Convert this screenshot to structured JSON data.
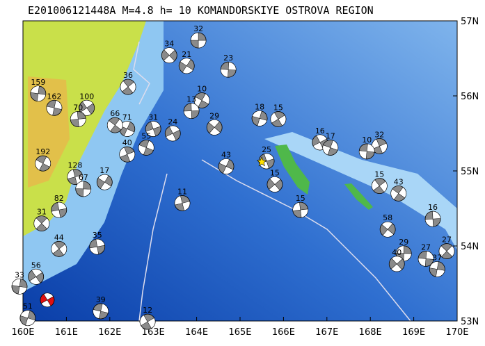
{
  "map": {
    "title": "E201006121448A M=4.8 h= 10 KOMANDORSKIYE OSTROVA REGION",
    "xlim": [
      160,
      170
    ],
    "ylim": [
      53,
      57
    ],
    "xticks": [
      {
        "value": 160,
        "label": "160E"
      },
      {
        "value": 161,
        "label": "161E"
      },
      {
        "value": 162,
        "label": "162E"
      },
      {
        "value": 163,
        "label": "163E"
      },
      {
        "value": 164,
        "label": "164E"
      },
      {
        "value": 165,
        "label": "165E"
      },
      {
        "value": 166,
        "label": "166E"
      },
      {
        "value": 167,
        "label": "167E"
      },
      {
        "value": 168,
        "label": "168E"
      },
      {
        "value": 169,
        "label": "169E"
      },
      {
        "value": 170,
        "label": "170E"
      }
    ],
    "yticks": [
      {
        "value": 53,
        "label": "53N"
      },
      {
        "value": 54,
        "label": "54N"
      },
      {
        "value": 55,
        "label": "55N"
      },
      {
        "value": 56,
        "label": "56N"
      },
      {
        "value": 57,
        "label": "57N"
      }
    ],
    "epicenter": {
      "lon": 165.5,
      "lat": 55.12
    },
    "main_event": {
      "lon": 160.56,
      "lat": 53.28
    },
    "events": [
      {
        "label": "32",
        "lon": 164.04,
        "lat": 56.74
      },
      {
        "label": "34",
        "lon": 163.37,
        "lat": 56.54
      },
      {
        "label": "23",
        "lon": 164.73,
        "lat": 56.35
      },
      {
        "label": "36",
        "lon": 162.42,
        "lat": 56.12
      },
      {
        "label": "159",
        "lon": 160.35,
        "lat": 56.03
      },
      {
        "label": "100",
        "lon": 161.47,
        "lat": 55.84
      },
      {
        "label": "162",
        "lon": 160.72,
        "lat": 55.84
      },
      {
        "label": "15",
        "lon": 165.88,
        "lat": 55.69
      },
      {
        "label": "18",
        "lon": 165.45,
        "lat": 55.7
      },
      {
        "label": "16",
        "lon": 166.84,
        "lat": 55.38
      },
      {
        "label": "17",
        "lon": 167.08,
        "lat": 55.31
      },
      {
        "label": "32",
        "lon": 168.21,
        "lat": 55.33
      },
      {
        "label": "71",
        "lon": 162.4,
        "lat": 55.56
      },
      {
        "label": "31",
        "lon": 163.0,
        "lat": 55.56
      },
      {
        "label": "192",
        "lon": 160.46,
        "lat": 55.1
      },
      {
        "label": "128",
        "lon": 161.2,
        "lat": 54.92
      },
      {
        "label": "17",
        "lon": 161.88,
        "lat": 54.85
      },
      {
        "label": "82",
        "lon": 160.83,
        "lat": 54.48
      },
      {
        "label": "43",
        "lon": 168.65,
        "lat": 54.7
      },
      {
        "label": "15",
        "lon": 166.39,
        "lat": 54.48
      },
      {
        "label": "58",
        "lon": 168.4,
        "lat": 54.22
      },
      {
        "label": "16",
        "lon": 169.44,
        "lat": 54.36
      },
      {
        "label": "27",
        "lon": 169.76,
        "lat": 53.93
      },
      {
        "label": "29",
        "lon": 168.77,
        "lat": 53.9
      },
      {
        "label": "40",
        "lon": 168.61,
        "lat": 53.76
      },
      {
        "label": "27",
        "lon": 169.28,
        "lat": 53.83
      },
      {
        "label": "44",
        "lon": 160.83,
        "lat": 53.96
      },
      {
        "label": "33",
        "lon": 159.92,
        "lat": 53.46
      },
      {
        "label": "56",
        "lon": 160.3,
        "lat": 53.59
      },
      {
        "label": "39",
        "lon": 161.79,
        "lat": 53.13
      },
      {
        "label": "12",
        "lon": 162.87,
        "lat": 52.99
      },
      {
        "label": "51",
        "lon": 160.11,
        "lat": 53.04
      },
      {
        "label": "24",
        "lon": 163.45,
        "lat": 55.5
      },
      {
        "label": "55",
        "lon": 162.84,
        "lat": 55.31
      },
      {
        "label": "40",
        "lon": 162.4,
        "lat": 55.22
      },
      {
        "label": "43",
        "lon": 164.68,
        "lat": 55.06
      },
      {
        "label": "25",
        "lon": 165.61,
        "lat": 55.13
      },
      {
        "label": "10",
        "lon": 164.12,
        "lat": 55.94
      },
      {
        "label": "11",
        "lon": 163.67,
        "lat": 54.57
      },
      {
        "label": "21",
        "lon": 163.77,
        "lat": 56.4
      },
      {
        "label": "35",
        "lon": 161.71,
        "lat": 53.99
      },
      {
        "label": "66",
        "lon": 162.12,
        "lat": 55.61
      },
      {
        "label": "70",
        "lon": 161.27,
        "lat": 55.69
      },
      {
        "label": "29",
        "lon": 164.41,
        "lat": 55.58
      },
      {
        "label": "13",
        "lon": 163.88,
        "lat": 55.8
      },
      {
        "label": "31",
        "lon": 160.43,
        "lat": 54.3
      },
      {
        "label": "67",
        "lon": 161.39,
        "lat": 54.76
      },
      {
        "label": "15",
        "lon": 165.8,
        "lat": 54.82
      },
      {
        "label": "10",
        "lon": 167.92,
        "lat": 55.26
      },
      {
        "label": "15",
        "lon": 168.21,
        "lat": 54.8
      },
      {
        "label": "37",
        "lon": 169.54,
        "lat": 53.69
      }
    ]
  }
}
